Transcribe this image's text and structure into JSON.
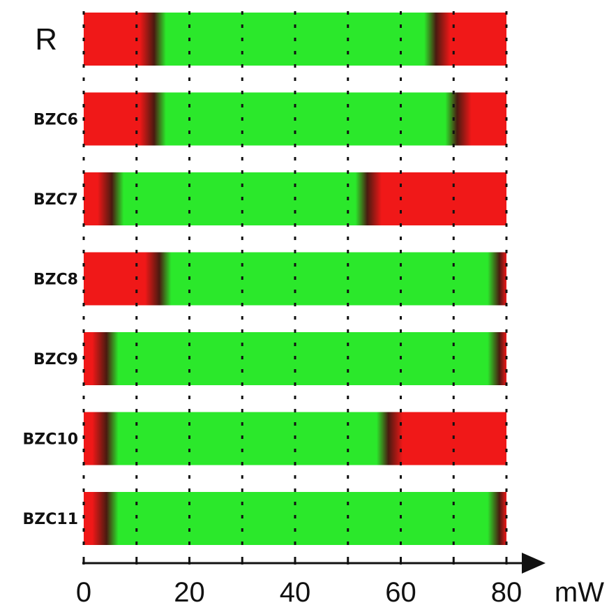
{
  "chart_data": {
    "type": "bar",
    "orientation": "horizontal",
    "description_colors": {
      "stable": "#2be82b",
      "unstable": "#f01818"
    },
    "x": {
      "unit_label": "mW",
      "ticks": [
        0,
        20,
        40,
        60,
        80
      ],
      "tick_labels": [
        "0",
        "20",
        "40",
        "60",
        "80"
      ],
      "range": [
        0,
        80
      ],
      "gridlines_every": 10,
      "grid": true,
      "grid_style": "dotted"
    },
    "categories": [
      "R",
      "BZC6",
      "BZC7",
      "BZC8",
      "BZC9",
      "BZC10",
      "BZC11"
    ],
    "stable_ranges": [
      {
        "name": "R",
        "from": 14,
        "to": 66
      },
      {
        "name": "BZC6",
        "from": 14,
        "to": 70
      },
      {
        "name": "BZC7",
        "from": 6,
        "to": 53
      },
      {
        "name": "BZC8",
        "from": 15,
        "to": 78
      },
      {
        "name": "BZC9",
        "from": 5,
        "to": 78
      },
      {
        "name": "BZC10",
        "from": 5,
        "to": 57
      },
      {
        "name": "BZC11",
        "from": 5,
        "to": 78
      }
    ]
  }
}
